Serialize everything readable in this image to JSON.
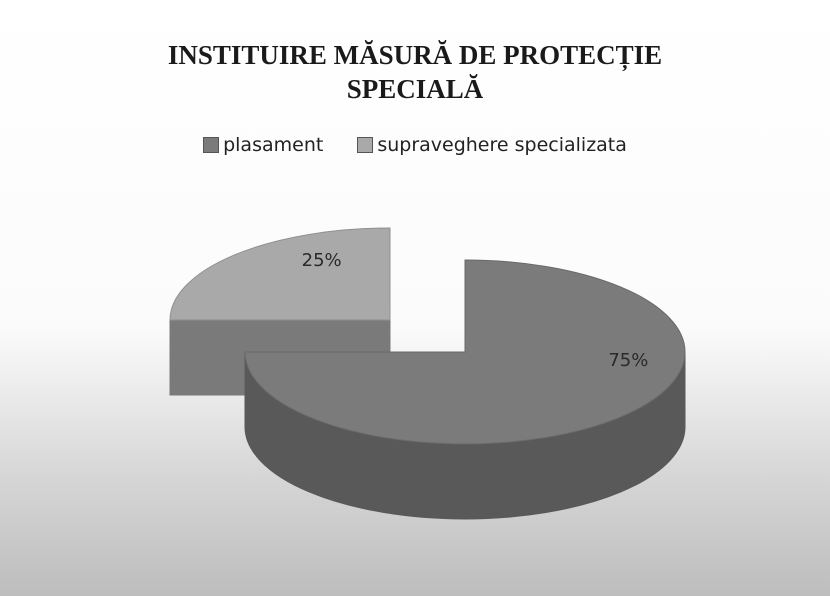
{
  "chart_data": {
    "type": "pie",
    "title": "INSTITUIRE MĂSURĂ DE PROTECȚIE SPECIALĂ",
    "categories": [
      "plasament",
      "supraveghere specializata"
    ],
    "values": [
      75,
      25
    ],
    "value_labels": [
      "75%",
      "25%"
    ],
    "colors": [
      "#7b7b7b",
      "#a9a9a9"
    ],
    "legend": "top"
  }
}
